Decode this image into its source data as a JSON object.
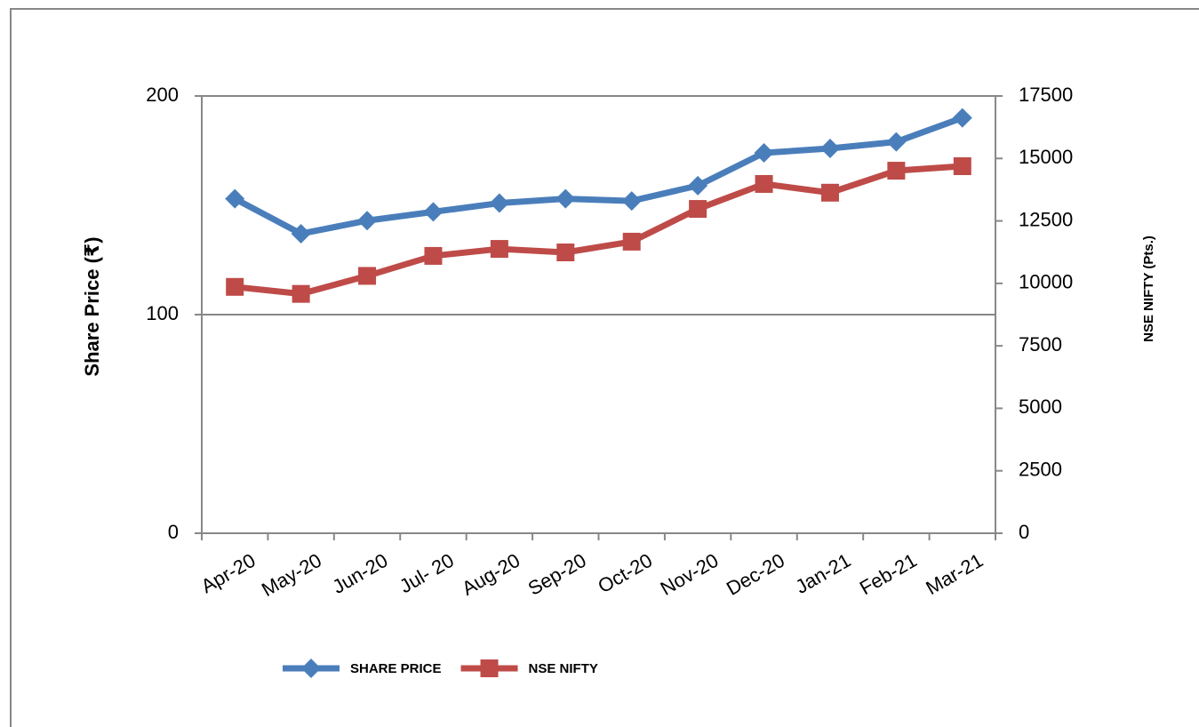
{
  "chart_data": {
    "type": "line",
    "ylabel": "Share Price (₹)",
    "y2label": "NSE NIFTY (Pts.)",
    "categories": [
      "Apr-20",
      "May-20",
      "Jun-20",
      "Jul- 20",
      "Aug-20",
      "Sep-20",
      "Oct-20",
      "Nov-20",
      "Dec-20",
      "Jan-21",
      "Feb-21",
      "Mar-21"
    ],
    "series": [
      {
        "name": "SHARE PRICE",
        "color": "#4a7ebb",
        "marker": "diamond",
        "values": [
          153,
          137,
          143,
          147,
          151,
          153,
          152,
          159,
          174,
          176,
          179,
          190
        ]
      },
      {
        "name": "NSE NIFTY",
        "color": "#be4b48",
        "marker": "square",
        "axis": "y2",
        "values": [
          9860,
          9580,
          10300,
          11100,
          11380,
          11240,
          11670,
          12980,
          13980,
          13630,
          14510,
          14690
        ]
      }
    ],
    "ylim": [
      0,
      200
    ],
    "yticks": [
      0,
      100,
      200
    ],
    "y2lim": [
      0,
      17500
    ],
    "y2ticks": [
      0,
      2500,
      5000,
      7500,
      10000,
      12500,
      15000,
      17500
    ],
    "grid": true,
    "legend": "bottom"
  }
}
